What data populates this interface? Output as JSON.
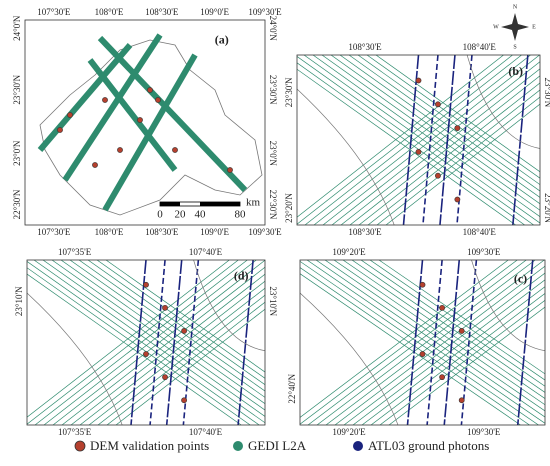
{
  "panels": [
    {
      "label": "(a)",
      "top": [
        "107°30'E",
        "108°0'E",
        "108°30'E",
        "109°0'E",
        "109°30'E"
      ],
      "bottom": [
        "107°30'E",
        "108°0'E",
        "108°30'E",
        "109°0'E",
        "109°30'E"
      ],
      "left": [
        "24°0'N",
        "23°30'N",
        "23°0'N",
        "22°30'N"
      ],
      "right": [
        "24°0'N",
        "23°30'N",
        "23°0'N",
        "22°30'N"
      ],
      "scale": [
        "0",
        "20",
        "40",
        "80"
      ],
      "scale_unit": "km"
    },
    {
      "label": "(b)",
      "top": [
        "108°30'E",
        "108°40'E"
      ],
      "bottom": [
        "108°30'E",
        "108°40'E"
      ],
      "left": [
        "23°30'N",
        "23°20'N"
      ],
      "right": [
        "23°30'N",
        "23°20'N"
      ]
    },
    {
      "label": "(d)",
      "top": [
        "107°35'E",
        "107°40'E"
      ],
      "bottom": [
        "107°35'E",
        "107°40'E"
      ],
      "left": [
        "23°10'N"
      ],
      "right": [
        "23°10'N"
      ]
    },
    {
      "label": "(c)",
      "top": [
        "109°20'E",
        "109°30'E"
      ],
      "bottom": [
        "109°20'E",
        "109°30'E"
      ],
      "left": [
        "22°40'N"
      ],
      "right": [
        "22°40'N"
      ]
    }
  ],
  "compass": [
    "N",
    "S",
    "E",
    "W"
  ],
  "legend": [
    "DEM validation points",
    "GEDI L2A",
    "ATL03 ground photons"
  ]
}
